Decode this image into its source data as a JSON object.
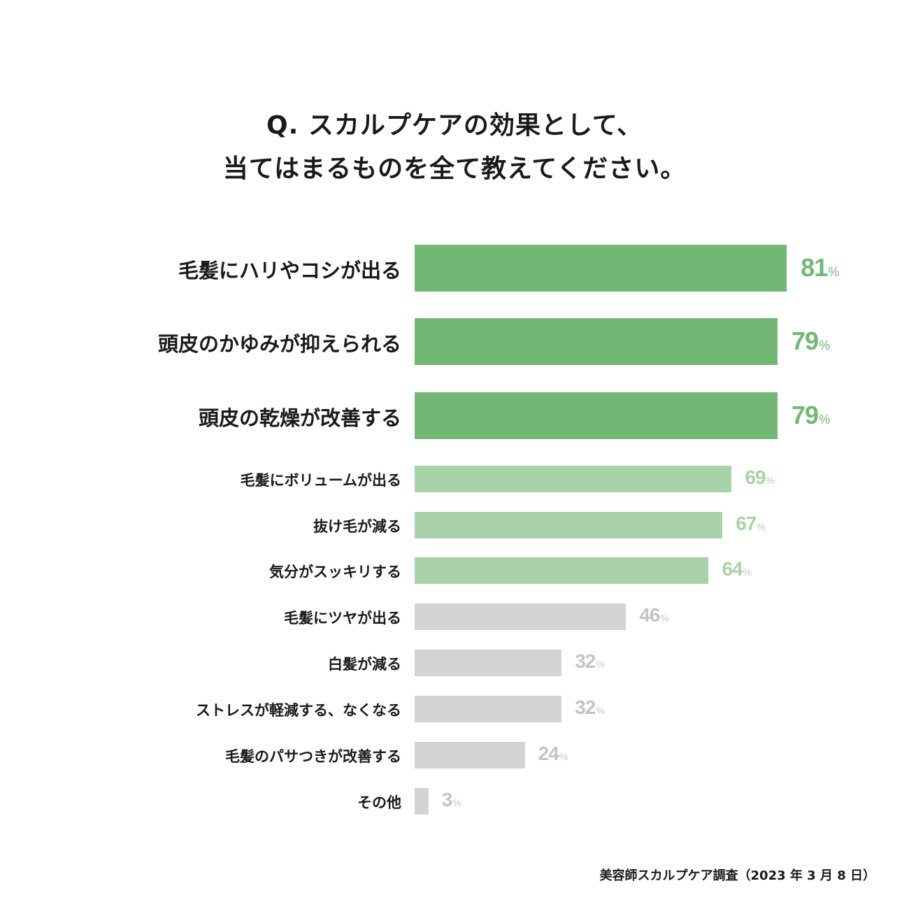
{
  "title": {
    "line1": "Q. スカルプケアの効果として、",
    "line2": "当てはまるものを全て教えてください。"
  },
  "chart_data": {
    "type": "bar",
    "orientation": "horizontal",
    "unit": "%",
    "categories": [
      "毛髪にハリやコシが出る",
      "頭皮のかゆみが抑えられる",
      "頭皮の乾燥が改善する",
      "毛髪にボリュームが出る",
      "抜け毛が減る",
      "気分がスッキリする",
      "毛髪にツヤが出る",
      "白髪が減る",
      "ストレスが軽減する、なくなる",
      "毛髪のパサつきが改善する",
      "その他"
    ],
    "values": [
      81,
      79,
      79,
      69,
      67,
      64,
      46,
      32,
      32,
      24,
      3
    ],
    "colors": {
      "top": "#72b874",
      "mid": "#a9d2a8",
      "low": "#d3d3d3",
      "low_label": "#c4c4c4"
    }
  },
  "source": "美容師スカルプケア調査（2023 年 3 月 8 日）"
}
